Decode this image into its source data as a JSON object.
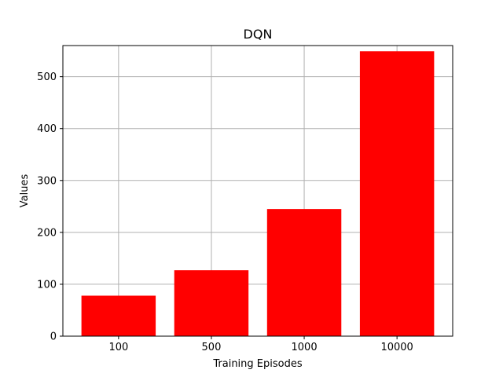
{
  "chart_data": {
    "type": "bar",
    "title": "DQN",
    "xlabel": "Training Episodes",
    "ylabel": "Values",
    "categories": [
      "100",
      "500",
      "1000",
      "10000"
    ],
    "values": [
      78,
      127,
      245,
      549
    ],
    "ylim": [
      0,
      560
    ],
    "yticks": [
      0,
      100,
      200,
      300,
      400,
      500
    ],
    "grid": true,
    "bar_color": "#ff0000",
    "legend": "none"
  }
}
